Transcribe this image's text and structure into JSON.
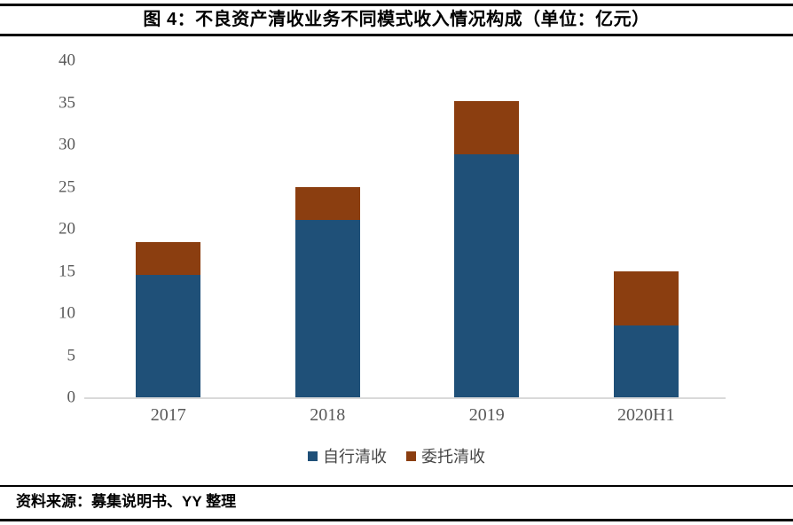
{
  "figure": {
    "title": "图 4：不良资产清收业务不同模式收入情况构成（单位：亿元）",
    "source": "资料来源：募集说明书、YY 整理"
  },
  "chart_data": {
    "type": "bar",
    "stacked": true,
    "title": "图 4：不良资产清收业务不同模式收入情况构成（单位：亿元）",
    "unit": "亿元",
    "categories": [
      "2017",
      "2018",
      "2019",
      "2020H1"
    ],
    "series": [
      {
        "name": "自行清收",
        "color": "#1F5078",
        "values": [
          14.5,
          21.1,
          28.8,
          8.5
        ]
      },
      {
        "name": "委托清收",
        "color": "#8B3E10",
        "values": [
          3.9,
          3.9,
          6.4,
          6.5
        ]
      }
    ],
    "totals": [
      18.4,
      25.0,
      35.2,
      15.0
    ],
    "ylim": [
      0,
      40
    ],
    "y_ticks": [
      0,
      5,
      10,
      15,
      20,
      25,
      30,
      35,
      40
    ],
    "grid": false,
    "legend_position": "bottom",
    "axis_color": "#D9D9D9",
    "tick_text_color": "#595959"
  }
}
